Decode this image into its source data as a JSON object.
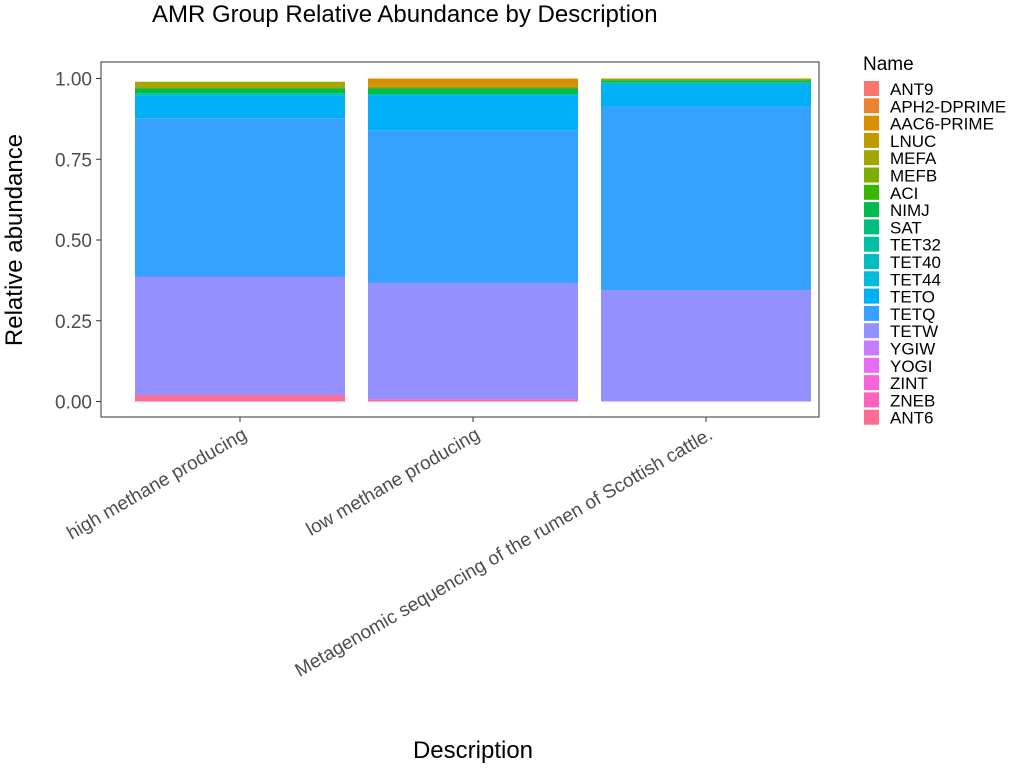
{
  "chart_data": {
    "type": "bar",
    "stacked": true,
    "title": "AMR Group Relative Abundance by Description",
    "xlabel": "Description",
    "ylabel": "Relative abundance",
    "ylim": [
      0,
      1.05
    ],
    "y_ticks": [
      "0.00",
      "0.25",
      "0.50",
      "0.75",
      "1.00"
    ],
    "grid": false,
    "legend_title": "Name",
    "legend_position": "right",
    "categories": [
      "high methane producing",
      "low methane producing",
      "Metagenomic sequencing of the rumen of Scottish cattle."
    ],
    "series": [
      {
        "name": "ANT9",
        "color": "#F8766D",
        "values": [
          0,
          0,
          0
        ]
      },
      {
        "name": "APH2-DPRIME",
        "color": "#EA8331",
        "values": [
          0,
          0,
          0
        ]
      },
      {
        "name": "AAC6-PRIME",
        "color": "#D89000",
        "values": [
          0,
          0.026,
          0
        ]
      },
      {
        "name": "LNUC",
        "color": "#C09B00",
        "values": [
          0,
          0,
          0
        ]
      },
      {
        "name": "MEFA",
        "color": "#A3A500",
        "values": [
          0.021,
          0,
          0.006
        ]
      },
      {
        "name": "MEFB",
        "color": "#7CAE00",
        "values": [
          0,
          0.005,
          0
        ]
      },
      {
        "name": "ACI",
        "color": "#39B600",
        "values": [
          0,
          0,
          0
        ]
      },
      {
        "name": "NIMJ",
        "color": "#00BB4E",
        "values": [
          0.016,
          0.017,
          0.006
        ]
      },
      {
        "name": "SAT",
        "color": "#00BF7D",
        "values": [
          0,
          0,
          0
        ]
      },
      {
        "name": "TET32",
        "color": "#00C1A3",
        "values": [
          0,
          0,
          0
        ]
      },
      {
        "name": "TET40",
        "color": "#00BFC4",
        "values": [
          0.006,
          0.006,
          0.008
        ]
      },
      {
        "name": "TET44",
        "color": "#00BAE0",
        "values": [
          0,
          0,
          0
        ]
      },
      {
        "name": "TETO",
        "color": "#00B0F6",
        "values": [
          0.07,
          0.106,
          0.067
        ]
      },
      {
        "name": "TETQ",
        "color": "#35A2FF",
        "values": [
          0.49,
          0.473,
          0.568
        ]
      },
      {
        "name": "TETW",
        "color": "#9590FF",
        "values": [
          0.367,
          0.36,
          0.345
        ]
      },
      {
        "name": "YGIW",
        "color": "#C77CFF",
        "values": [
          0,
          0,
          0
        ]
      },
      {
        "name": "YOGI",
        "color": "#E76BF3",
        "values": [
          0,
          0,
          0
        ]
      },
      {
        "name": "ZINT",
        "color": "#FA62DB",
        "values": [
          0,
          0,
          0
        ]
      },
      {
        "name": "ZNEB",
        "color": "#FF62BC",
        "values": [
          0,
          0,
          0
        ]
      },
      {
        "name": "ANT6",
        "color": "#FF6C91",
        "values": [
          0.02,
          0.007,
          0
        ]
      }
    ]
  }
}
